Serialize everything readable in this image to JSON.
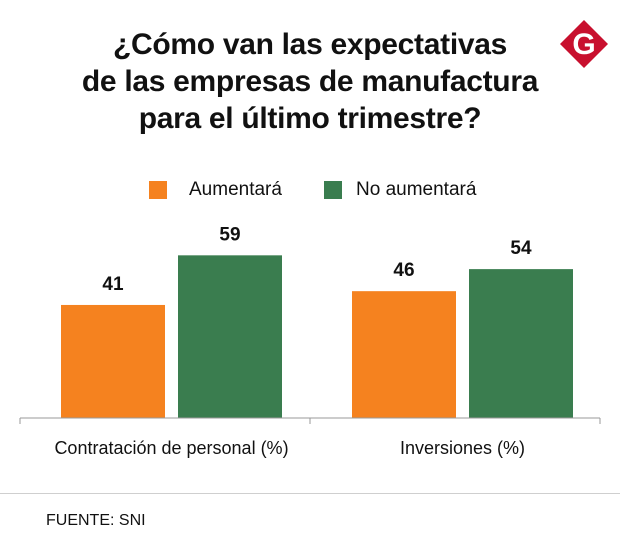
{
  "title_lines": [
    "¿Cómo van las expectativas",
    "de las empresas de manufactura",
    "para el último trimestre?"
  ],
  "logo": {
    "icon": "gestion-g-logo-icon",
    "letter": "G",
    "color": "#c8102e"
  },
  "source": "FUENTE: SNI",
  "colors": {
    "aumentara": "#f5821f",
    "no_aumentara": "#3a7d4f",
    "axis": "#999999"
  },
  "chart_data": {
    "type": "bar",
    "categories": [
      "Contratación de personal (%)",
      "Inversiones (%)"
    ],
    "series": [
      {
        "name": "Aumentará",
        "values": [
          41,
          46
        ]
      },
      {
        "name": "No aumentará",
        "values": [
          59,
          54
        ]
      }
    ],
    "ylim": [
      0,
      70
    ],
    "grid": false,
    "legend_position": "top-center"
  }
}
